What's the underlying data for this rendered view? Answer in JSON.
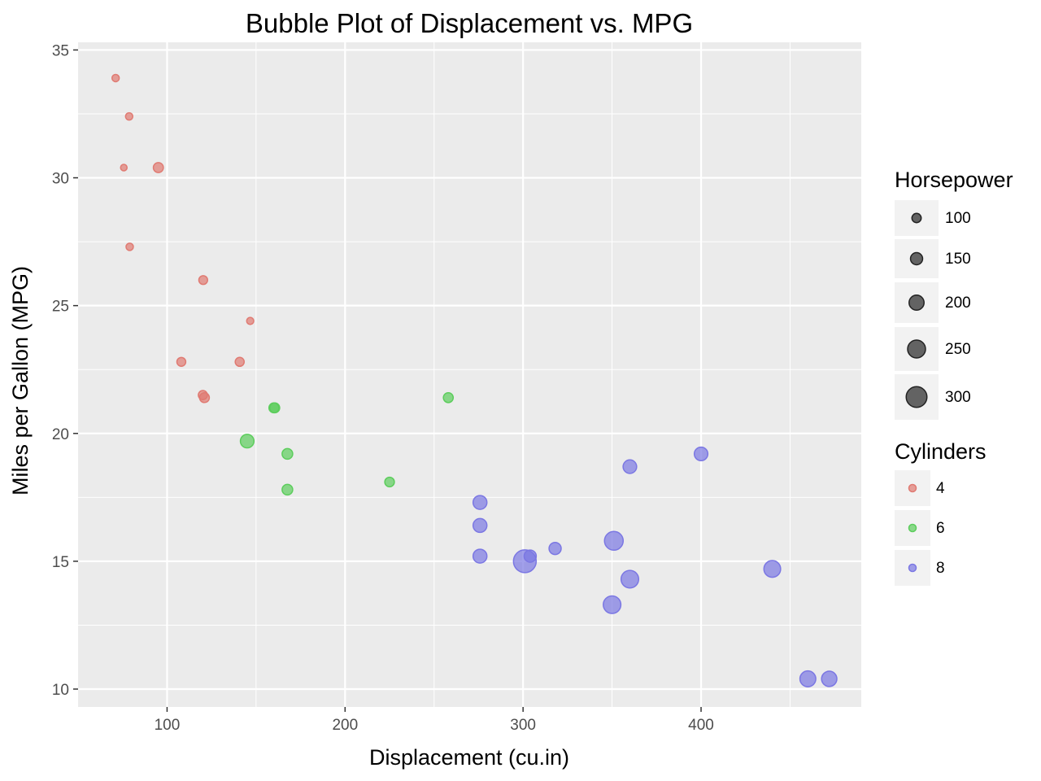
{
  "chart_data": {
    "type": "scatter",
    "title": "Bubble Plot of Displacement vs. MPG",
    "xlabel": "Displacement (cu.in)",
    "ylabel": "Miles per Gallon (MPG)",
    "xlim": [
      50,
      490
    ],
    "ylim": [
      9.3,
      35.3
    ],
    "x_ticks": [
      100,
      200,
      300,
      400
    ],
    "y_ticks": [
      10,
      15,
      20,
      25,
      30,
      35
    ],
    "grid": true,
    "legend_placement": "right",
    "size_legend": {
      "title": "Horsepower",
      "values": [
        100,
        150,
        200,
        250,
        300
      ],
      "color": "#333333"
    },
    "color_legend": {
      "title": "Cylinders",
      "entries": [
        {
          "label": "4",
          "color": "#e07a72"
        },
        {
          "label": "6",
          "color": "#5ccd5c"
        },
        {
          "label": "8",
          "color": "#7b77e3"
        }
      ]
    },
    "series": [
      {
        "name": "4",
        "color": "#e07a72",
        "points": [
          {
            "x": 108,
            "y": 22.8,
            "hp": 93
          },
          {
            "x": 146.7,
            "y": 24.4,
            "hp": 62
          },
          {
            "x": 140.8,
            "y": 22.8,
            "hp": 95
          },
          {
            "x": 78.7,
            "y": 32.4,
            "hp": 66
          },
          {
            "x": 75.7,
            "y": 30.4,
            "hp": 52
          },
          {
            "x": 71.1,
            "y": 33.9,
            "hp": 65
          },
          {
            "x": 120.1,
            "y": 21.5,
            "hp": 97
          },
          {
            "x": 79,
            "y": 27.3,
            "hp": 66
          },
          {
            "x": 120.3,
            "y": 26.0,
            "hp": 91
          },
          {
            "x": 95.1,
            "y": 30.4,
            "hp": 113
          },
          {
            "x": 121,
            "y": 21.4,
            "hp": 109
          }
        ]
      },
      {
        "name": "6",
        "color": "#5ccd5c",
        "points": [
          {
            "x": 160,
            "y": 21.0,
            "hp": 110
          },
          {
            "x": 160.5,
            "y": 21.0,
            "hp": 110
          },
          {
            "x": 258,
            "y": 21.4,
            "hp": 110
          },
          {
            "x": 225,
            "y": 18.1,
            "hp": 105
          },
          {
            "x": 167.6,
            "y": 19.2,
            "hp": 123
          },
          {
            "x": 167.6,
            "y": 17.8,
            "hp": 123
          },
          {
            "x": 145,
            "y": 19.7,
            "hp": 175
          }
        ]
      },
      {
        "name": "8",
        "color": "#7b77e3",
        "points": [
          {
            "x": 360,
            "y": 18.7,
            "hp": 175
          },
          {
            "x": 360,
            "y": 14.3,
            "hp": 245
          },
          {
            "x": 275.8,
            "y": 16.4,
            "hp": 180
          },
          {
            "x": 275.8,
            "y": 17.3,
            "hp": 180
          },
          {
            "x": 275.8,
            "y": 15.2,
            "hp": 180
          },
          {
            "x": 472,
            "y": 10.4,
            "hp": 205
          },
          {
            "x": 460,
            "y": 10.4,
            "hp": 215
          },
          {
            "x": 440,
            "y": 14.7,
            "hp": 230
          },
          {
            "x": 318,
            "y": 15.5,
            "hp": 150
          },
          {
            "x": 304,
            "y": 15.2,
            "hp": 150
          },
          {
            "x": 350,
            "y": 13.3,
            "hp": 245
          },
          {
            "x": 400,
            "y": 19.2,
            "hp": 175
          },
          {
            "x": 351,
            "y": 15.8,
            "hp": 264
          },
          {
            "x": 301,
            "y": 15.0,
            "hp": 335
          }
        ]
      }
    ]
  }
}
